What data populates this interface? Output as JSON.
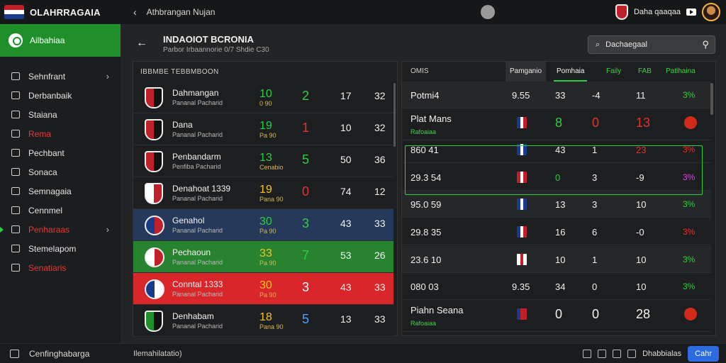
{
  "app": {
    "name": "OLAHRRAGAIA",
    "title": "Athbrangan Nujan"
  },
  "topbar": {
    "user_label": "Daha qaaqaa"
  },
  "sidebar": {
    "active": "Ailbahiaa",
    "items": [
      {
        "label": "Sehnfrant",
        "red": false,
        "chevron": true
      },
      {
        "label": "Derbanbaik",
        "red": false,
        "chevron": false
      },
      {
        "label": "Staiana",
        "red": false,
        "chevron": false
      },
      {
        "label": "Rema",
        "red": true,
        "chevron": false
      },
      {
        "label": "Pechbant",
        "red": false,
        "chevron": false
      },
      {
        "label": "Sonaca",
        "red": false,
        "chevron": false
      },
      {
        "label": "Semnagaia",
        "red": false,
        "chevron": false
      },
      {
        "label": "Cennmel",
        "red": false,
        "chevron": false
      },
      {
        "label": "Penharaas",
        "red": true,
        "chevron": true
      },
      {
        "label": "Stemelapom",
        "red": false,
        "chevron": false
      },
      {
        "label": "Senatiaris",
        "red": true,
        "chevron": false
      }
    ]
  },
  "header": {
    "title": "INDAOIOT BCRONIA",
    "subtitle": "Parbor Irbaannorie 0/7 Shdie C30",
    "search_placeholder": "Dachaegaal"
  },
  "left_table": {
    "header": "IBBMBE TEBBMBOON",
    "rows": [
      {
        "team": "Dahmangan",
        "sub": "Pananal Pacharid",
        "a": "10",
        "a_sub": "0 90",
        "b": "2",
        "c": "17",
        "d": "32",
        "a_color": "#2ecc40",
        "b_color": "#2ecc40",
        "bg": "#1d1e20",
        "crest": [
          "#c0202a",
          "#111111"
        ]
      },
      {
        "team": "Dana",
        "sub": "Pananal Pacharid",
        "a": "19",
        "a_sub": "Pa 90",
        "b": "1",
        "c": "10",
        "d": "32",
        "a_color": "#2ecc40",
        "b_color": "#e53030",
        "bg": "#1d1e20",
        "crest": [
          "#c0202a",
          "#111111"
        ]
      },
      {
        "team": "Penbandarm",
        "sub": "Penfiba Pacharid",
        "a": "13",
        "a_sub": "Cenabio",
        "b": "5",
        "c": "50",
        "d": "36",
        "a_color": "#2ecc40",
        "b_color": "#2ecc40",
        "bg": "#1d1e20",
        "crest": [
          "#c0202a",
          "#111111"
        ]
      },
      {
        "team": "Denahoat 1339",
        "sub": "Pananal Pacharid",
        "a": "19",
        "a_sub": "Pana 90",
        "b": "0",
        "c": "74",
        "d": "12",
        "a_color": "#f2c31b",
        "b_color": "#e53030",
        "bg": "#1d1e20",
        "crest": [
          "#ffffff",
          "#c0202a"
        ]
      },
      {
        "team": "Genahol",
        "sub": "Pananal Pacharid",
        "a": "30",
        "a_sub": "Pa 90",
        "b": "3",
        "c": "43",
        "d": "33",
        "a_color": "#2ecc40",
        "b_color": "#2ecc40",
        "bg": "#25395a",
        "crest": [
          "#1a3a8a",
          "#c0202a"
        ]
      },
      {
        "team": "Pechaoun",
        "sub": "Pananal Pacharid",
        "a": "33",
        "a_sub": "Pa 90",
        "b": "7",
        "c": "53",
        "d": "26",
        "a_color": "#f2c31b",
        "b_color": "#2ecc40",
        "bg": "#27832f",
        "crest": [
          "#ffffff",
          "#c0202a"
        ]
      },
      {
        "team": "Conntal 1333",
        "sub": "Pananal Pacharid",
        "a": "30",
        "a_sub": "Pa 90",
        "b": "3",
        "c": "43",
        "d": "33",
        "a_color": "#f2c31b",
        "b_color": "#ffffff",
        "bg": "#d8262a",
        "crest": [
          "#1a3a8a",
          "#ffffff"
        ]
      },
      {
        "team": "Denhabam",
        "sub": "Pananal Pacharid",
        "a": "18",
        "a_sub": "Pana 90",
        "b": "5",
        "c": "13",
        "d": "33",
        "a_color": "#f2c31b",
        "b_color": "#4aa0ff",
        "bg": "#1d1e20",
        "crest": [
          "#1f8f2a",
          "#111111"
        ]
      }
    ]
  },
  "right_table": {
    "headers": {
      "first": "OMIS",
      "tab_a": "Pamganio",
      "tab_b": "Pomhaia",
      "c1": "Faily",
      "c2": "FAB",
      "c3": "Patlhaina"
    },
    "rows": [
      {
        "name": "Potmi4",
        "sub": "",
        "val": "9.55",
        "flag": null,
        "c1": "33",
        "c2": "-4",
        "c3": "11",
        "pct": "3%",
        "c1c": "#f0f0f0",
        "c2c": "#f0f0f0",
        "c3c": "#f0f0f0",
        "pctc": "#2ecc40",
        "big": false,
        "ball": false,
        "dark": true
      },
      {
        "name": "Plat Mans",
        "sub": "Rafoaiaa",
        "val": "",
        "flag": [
          "#1a3a8a",
          "#ffffff",
          "#c0202a"
        ],
        "c1": "8",
        "c2": "0",
        "c3": "13",
        "pct": "",
        "c1c": "#2ecc40",
        "c2c": "#e53030",
        "c3c": "#e53030",
        "pctc": "#f0f0f0",
        "big": true,
        "ball": true,
        "dark": false
      },
      {
        "name": "860 41",
        "sub": "",
        "val": "",
        "flag": [
          "#1a3a8a",
          "#ffffff",
          "#1a3a8a"
        ],
        "c1": "43",
        "c2": "1",
        "c3": "23",
        "pct": "3%",
        "c1c": "#f0f0f0",
        "c2c": "#f0f0f0",
        "c3c": "#e53030",
        "pctc": "#e53030",
        "big": false,
        "ball": false,
        "dark": false
      },
      {
        "name": "29.3 54",
        "sub": "",
        "val": "",
        "flag": [
          "#c0202a",
          "#ffffff",
          "#c0202a"
        ],
        "c1": "0",
        "c2": "3",
        "c3": "-9",
        "pct": "3%",
        "c1c": "#2ecc40",
        "c2c": "#f0f0f0",
        "c3c": "#f0f0f0",
        "pctc": "#d04ad6",
        "big": false,
        "ball": false,
        "dark": false
      },
      {
        "name": "95.0 59",
        "sub": "",
        "val": "",
        "flag": [
          "#1a3a8a",
          "#ffffff",
          "#1a3a8a"
        ],
        "c1": "13",
        "c2": "3",
        "c3": "10",
        "pct": "3%",
        "c1c": "#f0f0f0",
        "c2c": "#f0f0f0",
        "c3c": "#f0f0f0",
        "pctc": "#2ecc40",
        "big": false,
        "ball": false,
        "dark": true
      },
      {
        "name": "29.8 35",
        "sub": "",
        "val": "",
        "flag": [
          "#1a3a8a",
          "#ffffff",
          "#c0202a"
        ],
        "c1": "16",
        "c2": "6",
        "c3": "-0",
        "pct": "3%",
        "c1c": "#f0f0f0",
        "c2c": "#f0f0f0",
        "c3c": "#f0f0f0",
        "pctc": "#e53030",
        "big": false,
        "ball": false,
        "dark": false
      },
      {
        "name": "23.6 10",
        "sub": "",
        "val": "",
        "flag": [
          "#ffffff",
          "#c0202a",
          "#ffffff"
        ],
        "c1": "10",
        "c2": "1",
        "c3": "10",
        "pct": "3%",
        "c1c": "#f0f0f0",
        "c2c": "#f0f0f0",
        "c3c": "#f0f0f0",
        "pctc": "#2ecc40",
        "big": false,
        "ball": false,
        "dark": true
      },
      {
        "name": "080 03",
        "sub": "",
        "val": "9.35",
        "flag": null,
        "c1": "34",
        "c2": "0",
        "c3": "10",
        "pct": "3%",
        "c1c": "#f0f0f0",
        "c2c": "#f0f0f0",
        "c3c": "#f0f0f0",
        "pctc": "#2ecc40",
        "big": false,
        "ball": false,
        "dark": false
      },
      {
        "name": "Piahn Seana",
        "sub": "Rafoaiaa",
        "val": "",
        "flag": [
          "#1a3a8a",
          "#c0202a",
          "#c0202a"
        ],
        "c1": "0",
        "c2": "0",
        "c3": "28",
        "pct": "",
        "c1c": "#f0f0f0",
        "c2c": "#f0f0f0",
        "c3c": "#f0f0f0",
        "pctc": "#f0f0f0",
        "big": true,
        "ball": true,
        "dark": false
      }
    ]
  },
  "bottombar": {
    "left_label": "Cenfinghabarga",
    "status": "Ilemahilatatio)",
    "right_label": "Dhabbialas",
    "button": "Cahr"
  },
  "colors": {
    "accent_green": "#1f8f2a",
    "accent_blue": "#2f6be0",
    "alert_red": "#e53030"
  }
}
